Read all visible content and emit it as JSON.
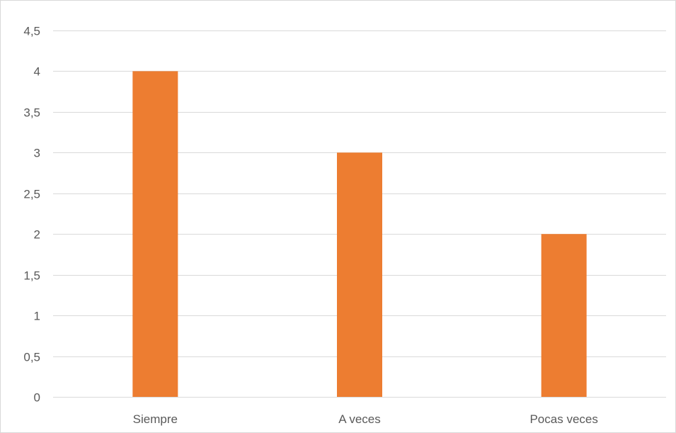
{
  "chart_data": {
    "type": "bar",
    "categories": [
      "Siempre",
      "A veces",
      "Pocas veces"
    ],
    "series": [
      {
        "values": [
          4,
          3,
          2
        ]
      }
    ],
    "title": "",
    "xlabel": "",
    "ylabel": "",
    "ylim": [
      0,
      4.5
    ],
    "yticks": [
      0,
      0.5,
      1,
      1.5,
      2,
      2.5,
      3,
      3.5,
      4,
      4.5
    ],
    "ytick_labels": [
      "0",
      "0,5",
      "1",
      "1,5",
      "2",
      "2,5",
      "3",
      "3,5",
      "4",
      "4,5"
    ],
    "grid": "horizontal",
    "legend": "none",
    "colors": {
      "bar": "#ed7d31",
      "grid": "#d9d9d9",
      "text": "#595959",
      "border": "#d9d9d9"
    }
  }
}
